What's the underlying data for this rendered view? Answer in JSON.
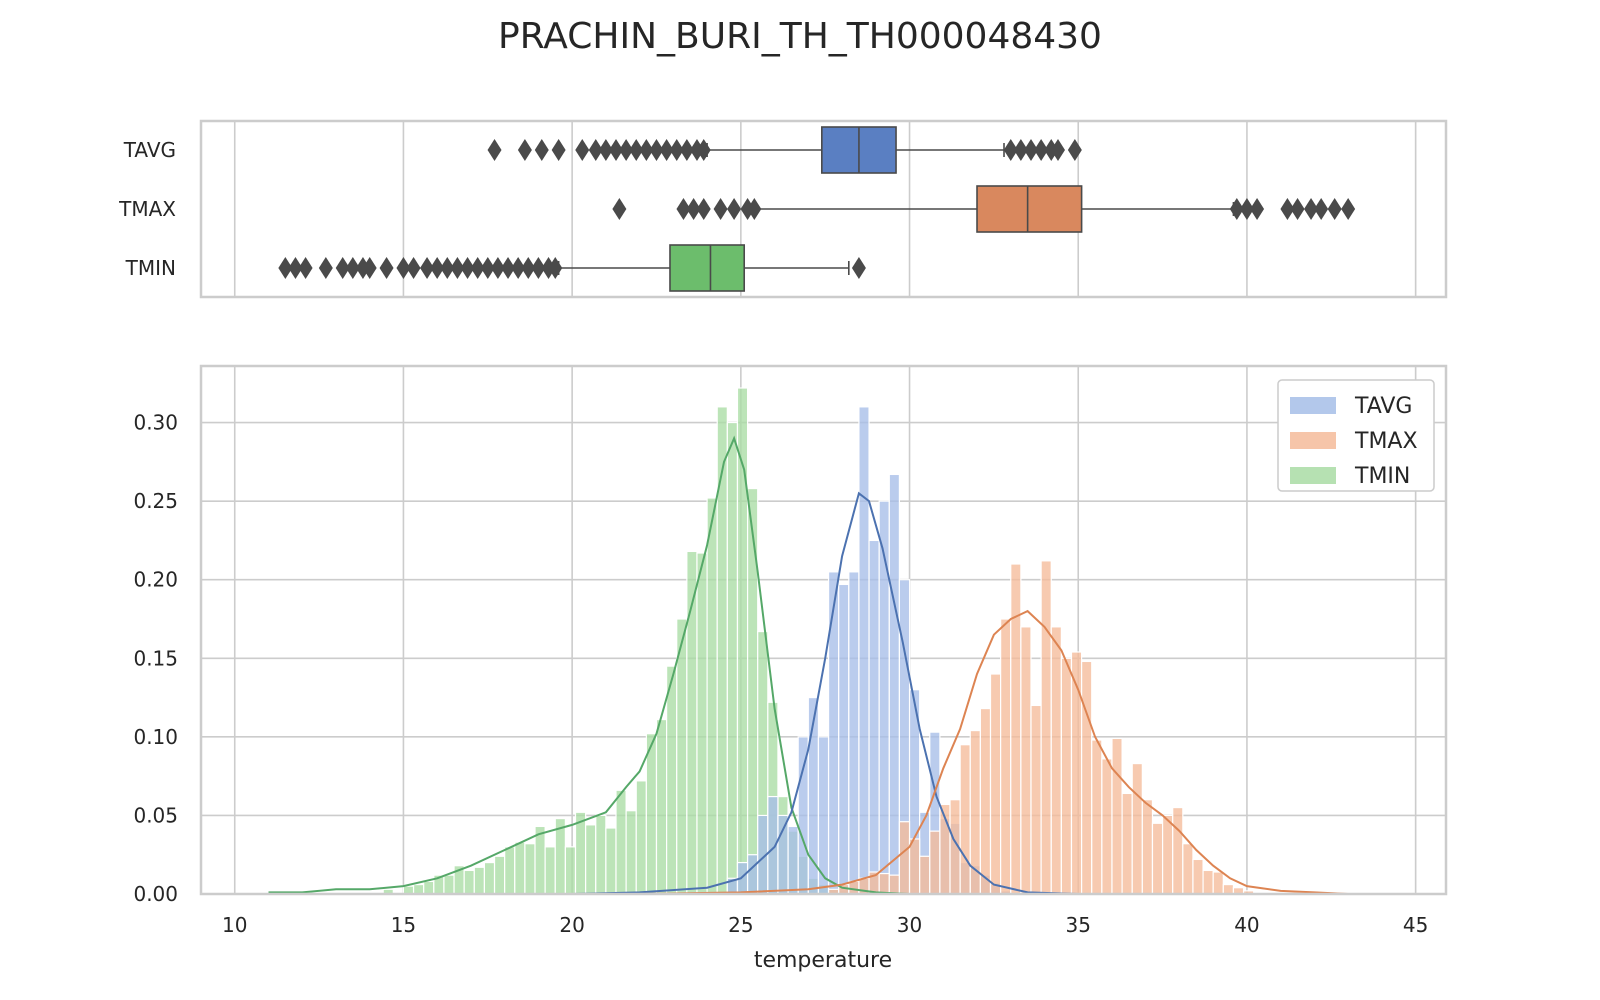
{
  "chart_data": {
    "type": "boxplot+histogram",
    "title": "PRACHIN_BURI_TH_TH000048430",
    "xlabel": "temperature",
    "ylabel": "",
    "xlim": [
      9,
      45.9
    ],
    "ylim": [
      0,
      0.336
    ],
    "x_ticks": [
      10,
      15,
      20,
      25,
      30,
      35,
      40,
      45
    ],
    "y_ticks": [
      0.0,
      0.05,
      0.1,
      0.15,
      0.2,
      0.25,
      0.3
    ],
    "y_tick_labels": [
      "0.00",
      "0.05",
      "0.10",
      "0.15",
      "0.20",
      "0.25",
      "0.30"
    ],
    "grid": true,
    "legend": {
      "placement": "top-right",
      "entries": [
        "TAVG",
        "TMAX",
        "TMIN"
      ]
    },
    "colors": {
      "TAVG": "#4c72b0",
      "TMAX": "#dd8452",
      "TMIN": "#55a868",
      "TAVG_box": "#5a7fc2",
      "TMAX_box": "#d9885e",
      "TMIN_box": "#6cbd6c",
      "hist_TAVG": "#a6bee8",
      "hist_TMAX": "#f5bb9a",
      "hist_TMIN": "#a9dca4",
      "outlier": "#4a4a4a",
      "whisker": "#4a4a4a"
    },
    "boxplot": [
      {
        "name": "TAVG",
        "whisker_low": 24.0,
        "q1": 27.4,
        "median": 28.5,
        "q3": 29.6,
        "whisker_high": 32.8,
        "outliers": [
          17.7,
          18.6,
          19.1,
          19.6,
          20.3,
          20.7,
          21.0,
          21.3,
          21.6,
          21.9,
          22.2,
          22.5,
          22.8,
          23.1,
          23.4,
          23.7,
          23.9,
          33.0,
          33.3,
          33.6,
          33.9,
          34.2,
          34.4,
          34.9
        ]
      },
      {
        "name": "TMAX",
        "whisker_low": 25.4,
        "q1": 32.0,
        "median": 33.5,
        "q3": 35.1,
        "whisker_high": 39.6,
        "outliers": [
          21.4,
          23.3,
          23.6,
          23.9,
          24.4,
          24.8,
          25.2,
          25.4,
          39.7,
          40.0,
          40.3,
          41.2,
          41.5,
          41.9,
          42.2,
          42.6,
          43.0
        ]
      },
      {
        "name": "TMIN",
        "whisker_low": 19.6,
        "q1": 22.9,
        "median": 24.1,
        "q3": 25.1,
        "whisker_high": 28.2,
        "outliers": [
          11.5,
          11.8,
          12.1,
          12.7,
          13.2,
          13.5,
          13.8,
          14.0,
          14.5,
          15.0,
          15.3,
          15.7,
          16.0,
          16.3,
          16.6,
          16.9,
          17.2,
          17.5,
          17.8,
          18.1,
          18.4,
          18.7,
          19.0,
          19.3,
          19.5,
          28.5
        ]
      }
    ],
    "series": [
      {
        "name": "TMIN",
        "bin_width": 0.3,
        "bins_x": [
          14.4,
          15.0,
          15.3,
          15.6,
          15.9,
          16.2,
          16.5,
          16.8,
          17.1,
          17.4,
          17.7,
          18.0,
          18.3,
          18.6,
          18.9,
          19.2,
          19.5,
          19.8,
          20.1,
          20.4,
          20.7,
          21.0,
          21.3,
          21.6,
          21.9,
          22.2,
          22.5,
          22.8,
          23.1,
          23.4,
          23.7,
          24.0,
          24.3,
          24.6,
          24.9,
          25.2,
          25.5,
          25.8,
          26.1,
          26.4,
          26.7,
          27.0,
          27.3,
          27.6,
          27.9
        ],
        "values": [
          0.003,
          0.005,
          0.006,
          0.008,
          0.012,
          0.012,
          0.018,
          0.015,
          0.017,
          0.02,
          0.024,
          0.03,
          0.033,
          0.032,
          0.043,
          0.03,
          0.048,
          0.03,
          0.052,
          0.044,
          0.05,
          0.042,
          0.066,
          0.053,
          0.072,
          0.102,
          0.111,
          0.145,
          0.175,
          0.218,
          0.217,
          0.252,
          0.31,
          0.3,
          0.322,
          0.258,
          0.167,
          0.122,
          0.062,
          0.04,
          0.024,
          0.01,
          0.006,
          0.004,
          0.002
        ]
      },
      {
        "name": "TAVG",
        "bins_x": [
          24.6,
          24.9,
          25.2,
          25.5,
          25.8,
          26.1,
          26.4,
          26.7,
          27.0,
          27.3,
          27.6,
          27.9,
          28.2,
          28.5,
          28.8,
          29.1,
          29.4,
          29.7,
          30.0,
          30.3,
          30.6,
          30.9,
          31.2,
          31.5,
          31.8,
          32.1,
          32.4,
          32.7
        ],
        "values": [
          0.01,
          0.02,
          0.025,
          0.05,
          0.062,
          0.05,
          0.043,
          0.1,
          0.125,
          0.1,
          0.205,
          0.197,
          0.205,
          0.31,
          0.225,
          0.25,
          0.267,
          0.2,
          0.13,
          0.052,
          0.103,
          0.048,
          0.045,
          0.02,
          0.018,
          0.012,
          0.007,
          0.002
        ]
      },
      {
        "name": "TMAX",
        "bins_x": [
          27.6,
          27.9,
          28.2,
          28.5,
          28.8,
          29.1,
          29.4,
          29.7,
          30.0,
          30.3,
          30.6,
          30.9,
          31.2,
          31.5,
          31.8,
          32.1,
          32.4,
          32.7,
          33.0,
          33.3,
          33.6,
          33.9,
          34.2,
          34.5,
          34.8,
          35.1,
          35.4,
          35.7,
          36.0,
          36.3,
          36.6,
          36.9,
          37.2,
          37.5,
          37.8,
          38.1,
          38.4,
          38.7,
          39.0,
          39.3,
          39.6,
          39.9
        ],
        "values": [
          0.003,
          0.006,
          0.008,
          0.01,
          0.014,
          0.013,
          0.012,
          0.046,
          0.035,
          0.024,
          0.04,
          0.057,
          0.06,
          0.095,
          0.104,
          0.118,
          0.14,
          0.175,
          0.21,
          0.17,
          0.12,
          0.212,
          0.17,
          0.15,
          0.154,
          0.148,
          0.098,
          0.086,
          0.099,
          0.064,
          0.083,
          0.06,
          0.045,
          0.05,
          0.055,
          0.032,
          0.022,
          0.015,
          0.014,
          0.006,
          0.004,
          0.002
        ]
      }
    ],
    "kde": [
      {
        "name": "TMIN",
        "points": [
          [
            11.0,
            0.001
          ],
          [
            12.0,
            0.001
          ],
          [
            13.0,
            0.003
          ],
          [
            14.0,
            0.003
          ],
          [
            15.0,
            0.005
          ],
          [
            16.0,
            0.01
          ],
          [
            17.0,
            0.018
          ],
          [
            18.0,
            0.028
          ],
          [
            19.0,
            0.038
          ],
          [
            20.0,
            0.044
          ],
          [
            21.0,
            0.052
          ],
          [
            21.6,
            0.068
          ],
          [
            22.0,
            0.078
          ],
          [
            22.5,
            0.102
          ],
          [
            23.0,
            0.14
          ],
          [
            23.5,
            0.18
          ],
          [
            24.0,
            0.222
          ],
          [
            24.5,
            0.275
          ],
          [
            24.8,
            0.29
          ],
          [
            25.1,
            0.27
          ],
          [
            25.5,
            0.205
          ],
          [
            26.0,
            0.118
          ],
          [
            26.5,
            0.055
          ],
          [
            27.0,
            0.025
          ],
          [
            27.5,
            0.01
          ],
          [
            28.0,
            0.004
          ],
          [
            29.0,
            0.001
          ],
          [
            30.0,
            0.0
          ]
        ]
      },
      {
        "name": "TAVG",
        "points": [
          [
            17.0,
            0.0
          ],
          [
            20.0,
            0.0
          ],
          [
            22.0,
            0.001
          ],
          [
            24.0,
            0.004
          ],
          [
            25.0,
            0.01
          ],
          [
            26.0,
            0.03
          ],
          [
            26.5,
            0.052
          ],
          [
            27.0,
            0.092
          ],
          [
            27.5,
            0.15
          ],
          [
            28.0,
            0.215
          ],
          [
            28.5,
            0.255
          ],
          [
            28.8,
            0.25
          ],
          [
            29.2,
            0.22
          ],
          [
            29.8,
            0.16
          ],
          [
            30.3,
            0.105
          ],
          [
            30.8,
            0.062
          ],
          [
            31.3,
            0.035
          ],
          [
            31.8,
            0.018
          ],
          [
            32.5,
            0.006
          ],
          [
            33.5,
            0.001
          ],
          [
            35.0,
            0.0
          ]
        ]
      },
      {
        "name": "TMAX",
        "points": [
          [
            22.0,
            0.0
          ],
          [
            25.0,
            0.001
          ],
          [
            27.0,
            0.003
          ],
          [
            28.0,
            0.006
          ],
          [
            29.0,
            0.012
          ],
          [
            30.0,
            0.03
          ],
          [
            30.5,
            0.05
          ],
          [
            31.0,
            0.08
          ],
          [
            31.5,
            0.105
          ],
          [
            32.0,
            0.14
          ],
          [
            32.5,
            0.165
          ],
          [
            33.0,
            0.175
          ],
          [
            33.5,
            0.18
          ],
          [
            34.0,
            0.17
          ],
          [
            34.5,
            0.155
          ],
          [
            35.0,
            0.13
          ],
          [
            35.5,
            0.1
          ],
          [
            36.0,
            0.08
          ],
          [
            36.5,
            0.068
          ],
          [
            37.0,
            0.058
          ],
          [
            37.5,
            0.05
          ],
          [
            38.0,
            0.04
          ],
          [
            38.5,
            0.028
          ],
          [
            39.0,
            0.018
          ],
          [
            39.5,
            0.01
          ],
          [
            40.0,
            0.005
          ],
          [
            41.0,
            0.002
          ],
          [
            42.0,
            0.001
          ],
          [
            43.0,
            0.0
          ]
        ]
      }
    ]
  }
}
